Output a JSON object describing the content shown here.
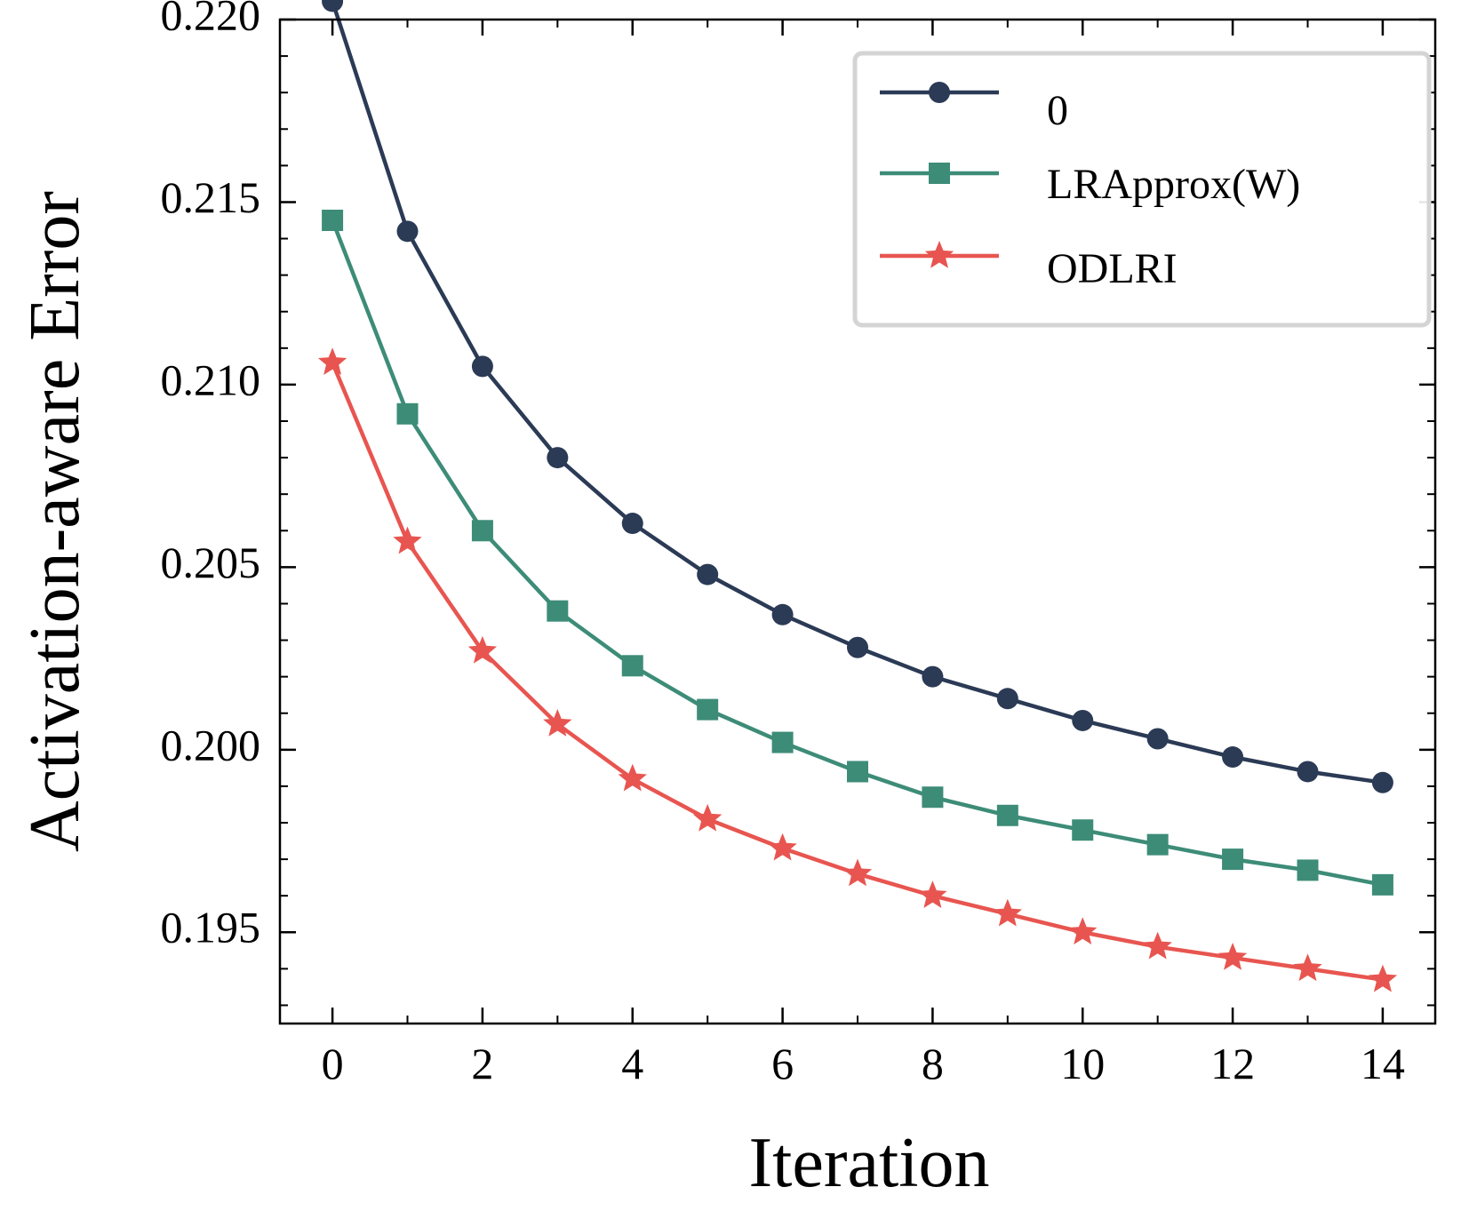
{
  "chart_data": {
    "type": "line",
    "title": "",
    "xlabel": "Iteration",
    "ylabel": "Activation-aware Error",
    "x": [
      0,
      1,
      2,
      3,
      4,
      5,
      6,
      7,
      8,
      9,
      10,
      11,
      12,
      13,
      14
    ],
    "xlim": [
      -0.7,
      14.7
    ],
    "ylim": [
      0.1925,
      0.22
    ],
    "xticks": [
      0,
      2,
      4,
      6,
      8,
      10,
      12,
      14
    ],
    "xtick_labels": [
      "0",
      "2",
      "4",
      "6",
      "8",
      "10",
      "12",
      "14"
    ],
    "yticks": [
      0.195,
      0.2,
      0.205,
      0.21,
      0.215,
      0.22
    ],
    "ytick_labels": [
      "0.195",
      "0.200",
      "0.205",
      "0.210",
      "0.215",
      "0.220"
    ],
    "x_minor_step": 1,
    "y_minor_step": 0.001,
    "grid": false,
    "legend_position": "top-right",
    "series": [
      {
        "name": "0",
        "color": "#2b3a55",
        "marker": "circle",
        "values": [
          0.2205,
          0.2142,
          0.2105,
          0.208,
          0.2062,
          0.2048,
          0.2037,
          0.2028,
          0.202,
          0.2014,
          0.2008,
          0.2003,
          0.1998,
          0.1994,
          0.1991
        ]
      },
      {
        "name": "LRApprox(W)",
        "color": "#3d8c78",
        "marker": "square",
        "values": [
          0.2145,
          0.2092,
          0.206,
          0.2038,
          0.2023,
          0.2011,
          0.2002,
          0.1994,
          0.1987,
          0.1982,
          0.1978,
          0.1974,
          0.197,
          0.1967,
          0.1963
        ]
      },
      {
        "name": "ODLRI",
        "color": "#e85550",
        "marker": "star",
        "values": [
          0.2106,
          0.2057,
          0.2027,
          0.2007,
          0.1992,
          0.1981,
          0.1973,
          0.1966,
          0.196,
          0.1955,
          0.195,
          0.1946,
          0.1943,
          0.194,
          0.1937
        ]
      }
    ]
  }
}
